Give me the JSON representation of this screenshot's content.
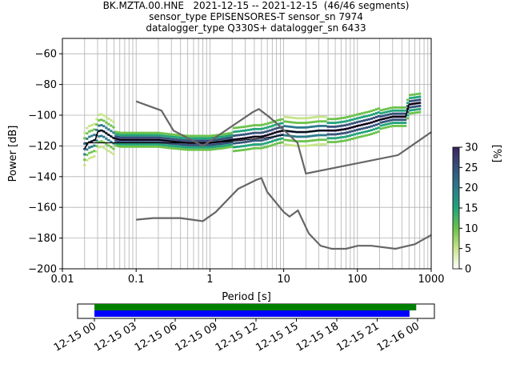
{
  "figure": {
    "title_lines": [
      "BK.MZTA.00.HNE   2021-12-15 -- 2021-12-15  (46/46 segments)",
      "sensor_type EPISENSORES-T sensor_sn 7974",
      "datalogger_type Q330S+ datalogger_sn 6433"
    ]
  },
  "chart_data": [
    {
      "type": "heatmap",
      "title": "",
      "xlabel": "Period [s]",
      "ylabel": "Power [dB]",
      "x_scale": "log",
      "xlim": [
        0.01,
        1000
      ],
      "ylim": [
        -200,
        -50
      ],
      "x_ticks": [
        "0.01",
        "0.1",
        "1",
        "10",
        "100",
        "1000"
      ],
      "y_ticks": [
        "−60",
        "−80",
        "−100",
        "−120",
        "−140",
        "−160",
        "−180",
        "−200"
      ],
      "grid": true,
      "colorbar": {
        "label": "[%]",
        "range": [
          0,
          30
        ],
        "ticks": [
          "0",
          "5",
          "10",
          "15",
          "20",
          "25",
          "30"
        ],
        "colormap": [
          "#ffffff",
          "#c7e48b",
          "#6cc24a",
          "#21a47a",
          "#2c7a8c",
          "#35527a",
          "#3c2463"
        ]
      },
      "series": [
        {
          "role": "mode",
          "color": "#000000",
          "x": [
            0.02,
            0.022,
            0.025,
            0.028,
            0.03,
            0.032,
            0.035,
            0.04,
            0.05,
            0.06,
            0.08,
            0.1,
            0.2,
            0.3,
            0.5,
            0.7,
            0.8,
            1,
            1.5,
            2,
            3,
            4,
            5,
            6,
            7,
            8,
            10,
            15,
            20,
            30,
            50,
            70,
            100,
            150,
            200,
            300,
            400,
            450,
            500,
            700
          ],
          "y": [
            -122,
            -118,
            -117,
            -116,
            -111,
            -110,
            -110,
            -112,
            -115,
            -116,
            -116,
            -116,
            -116,
            -117,
            -118,
            -118,
            -118,
            -118,
            -117,
            -116,
            -115,
            -114,
            -114,
            -113,
            -112,
            -111,
            -110,
            -111,
            -111,
            -110,
            -110,
            -109,
            -107,
            -105,
            -103,
            -101,
            -101,
            -101,
            -93,
            -92
          ]
        },
        {
          "role": "mean",
          "color": "#000000",
          "x": [
            0.02,
            0.03,
            0.05,
            0.1,
            0.5,
            1,
            2,
            5,
            10
          ],
          "y": [
            -118,
            -118,
            -118,
            -118,
            -118,
            -118,
            -117,
            -115,
            -113
          ]
        },
        {
          "role": "low-noise-model",
          "color": "#666666",
          "x": [
            0.1,
            0.17,
            0.4,
            0.8,
            1.2,
            2.4,
            4.3,
            5,
            6,
            10,
            12,
            15.6,
            21.9,
            31.6,
            45,
            70,
            101,
            154,
            328,
            600,
            1000
          ],
          "y": [
            -168,
            -167,
            -167,
            -169,
            -163,
            -148,
            -142,
            -141,
            -150,
            -163,
            -166,
            -162,
            -177,
            -185,
            -187,
            -187,
            -185,
            -185,
            -187,
            -184,
            -178
          ]
        },
        {
          "role": "high-noise-model",
          "color": "#666666",
          "x": [
            0.1,
            0.22,
            0.32,
            0.8,
            3.8,
            4.6,
            6.3,
            7.9,
            15.4,
            20,
            354.8,
            1000
          ],
          "y": [
            -91,
            -97,
            -110,
            -120,
            -98,
            -96,
            -101,
            -105,
            -118,
            -138,
            -126,
            -111
          ]
        }
      ],
      "psd_cloud_note": "histogram density mostly concentrated around the mode line from 0.02 s to 700 s"
    },
    {
      "type": "bar",
      "xlabel": "",
      "x_ticks": [
        "12-15 00",
        "12-15 03",
        "12-15 06",
        "12-15 09",
        "12-15 12",
        "12-15 15",
        "12-15 18",
        "12-15 21",
        "12-16 00"
      ],
      "x_range_hours": [
        -1.25,
        25.25
      ],
      "series": [
        {
          "name": "",
          "color": "#008000",
          "start_hour": 0.0,
          "end_hour": 23.9
        },
        {
          "name": "",
          "color": "#0000ff",
          "start_hour": 0.0,
          "end_hour": 23.4
        }
      ]
    }
  ]
}
